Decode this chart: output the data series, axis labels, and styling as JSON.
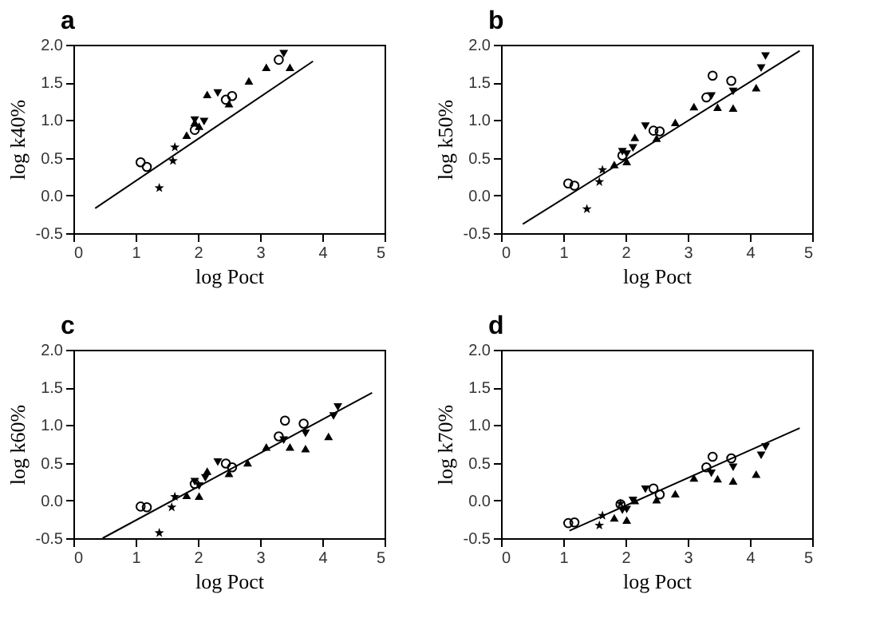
{
  "chart_data": [
    {
      "type": "scatter",
      "title": "a",
      "xlabel": "log Poct",
      "ylabel": "log k40%",
      "xlim": [
        0,
        5
      ],
      "ylim": [
        -0.5,
        2.0
      ],
      "xticks": [
        0,
        1,
        2,
        3,
        4,
        5
      ],
      "yticks": [
        {
          "value": -0.5,
          "label": "-0.5"
        },
        {
          "value": 0,
          "label": "0.0"
        },
        {
          "value": 0.5,
          "label": "0.5"
        },
        {
          "value": 1,
          "label": "1.0"
        },
        {
          "value": 1.5,
          "label": "1.5"
        },
        {
          "value": 2,
          "label": "2.0"
        }
      ],
      "grid": false,
      "series": [
        {
          "color": "#000000",
          "marker": "circle",
          "x": [
            1.08,
            1.18,
            1.95,
            2.45,
            2.55,
            3.3
          ],
          "values": [
            0.44,
            0.38,
            0.87,
            1.27,
            1.32,
            1.8
          ]
        },
        {
          "color": "#000000",
          "marker": "triangle",
          "x": [
            1.82,
            1.95,
            2.02,
            2.15,
            2.5,
            2.82,
            3.1,
            3.48
          ],
          "values": [
            0.8,
            0.97,
            0.92,
            1.34,
            1.22,
            1.52,
            1.7,
            1.7
          ]
        },
        {
          "color": "#000000",
          "marker": "triangle-down",
          "x": [
            1.95,
            2.1,
            2.32,
            3.38
          ],
          "values": [
            1.0,
            0.98,
            1.36,
            1.88
          ]
        },
        {
          "color": "#000000",
          "marker": "star",
          "x": [
            1.38,
            1.6,
            1.63
          ],
          "values": [
            0.1,
            0.46,
            0.64
          ]
        },
        {
          "type": "line",
          "color": "#000000",
          "x": [
            0.35,
            3.85
          ],
          "values": [
            -0.17,
            1.78
          ]
        }
      ]
    },
    {
      "type": "scatter",
      "title": "b",
      "xlabel": "log Poct",
      "ylabel": "log k50%",
      "xlim": [
        0,
        5
      ],
      "ylim": [
        -0.5,
        2.0
      ],
      "xticks": [
        0,
        1,
        2,
        3,
        4,
        5
      ],
      "yticks": [
        {
          "value": -0.5,
          "label": "-0.5"
        },
        {
          "value": 0,
          "label": "0.0"
        },
        {
          "value": 0.5,
          "label": "0.5"
        },
        {
          "value": 1,
          "label": "1.0"
        },
        {
          "value": 1.5,
          "label": "1.5"
        },
        {
          "value": 2,
          "label": "2.0"
        }
      ],
      "grid": false,
      "series": [
        {
          "color": "#000000",
          "marker": "circle",
          "x": [
            1.08,
            1.18,
            1.95,
            2.45,
            2.55,
            3.3,
            3.4,
            3.7
          ],
          "values": [
            0.16,
            0.13,
            0.53,
            0.86,
            0.85,
            1.3,
            1.59,
            1.52
          ]
        },
        {
          "color": "#000000",
          "marker": "triangle",
          "x": [
            1.82,
            2.02,
            2.15,
            2.5,
            2.8,
            3.1,
            3.48,
            3.73,
            4.1
          ],
          "values": [
            0.41,
            0.45,
            0.77,
            0.76,
            0.97,
            1.18,
            1.17,
            1.16,
            1.43
          ]
        },
        {
          "color": "#000000",
          "marker": "triangle-down",
          "x": [
            1.95,
            2.02,
            2.12,
            2.32,
            3.38,
            3.73,
            4.18,
            4.25
          ],
          "values": [
            0.58,
            0.55,
            0.63,
            0.92,
            1.32,
            1.38,
            1.69,
            1.85
          ]
        },
        {
          "color": "#000000",
          "marker": "star",
          "x": [
            1.38,
            1.58,
            1.63
          ],
          "values": [
            -0.18,
            0.18,
            0.34
          ]
        },
        {
          "type": "line",
          "color": "#000000",
          "x": [
            0.35,
            4.8
          ],
          "values": [
            -0.38,
            1.92
          ]
        }
      ]
    },
    {
      "type": "scatter",
      "title": "c",
      "xlabel": "log Poct",
      "ylabel": "log k60%",
      "xlim": [
        0,
        5
      ],
      "ylim": [
        -0.5,
        2.0
      ],
      "xticks": [
        0,
        1,
        2,
        3,
        4,
        5
      ],
      "yticks": [
        {
          "value": -0.5,
          "label": "-0.5"
        },
        {
          "value": 0,
          "label": "0.0"
        },
        {
          "value": 0.5,
          "label": "0.5"
        },
        {
          "value": 1,
          "label": "1.0"
        },
        {
          "value": 1.5,
          "label": "1.5"
        },
        {
          "value": 2,
          "label": "2.0"
        }
      ],
      "grid": false,
      "series": [
        {
          "color": "#000000",
          "marker": "circle",
          "x": [
            1.08,
            1.18,
            1.95,
            2.45,
            2.55,
            3.3,
            3.4,
            3.7
          ],
          "values": [
            -0.08,
            -0.09,
            0.22,
            0.49,
            0.44,
            0.85,
            1.06,
            1.02
          ]
        },
        {
          "color": "#000000",
          "marker": "triangle",
          "x": [
            1.82,
            2.02,
            2.15,
            2.5,
            2.8,
            3.1,
            3.48,
            3.73,
            4.1
          ],
          "values": [
            0.07,
            0.06,
            0.39,
            0.36,
            0.5,
            0.71,
            0.71,
            0.69,
            0.85
          ]
        },
        {
          "color": "#000000",
          "marker": "triangle-down",
          "x": [
            1.95,
            2.02,
            2.12,
            2.32,
            3.38,
            3.73,
            4.18,
            4.25
          ],
          "values": [
            0.25,
            0.19,
            0.3,
            0.51,
            0.8,
            0.89,
            1.12,
            1.24
          ]
        },
        {
          "color": "#000000",
          "marker": "star",
          "x": [
            1.38,
            1.58,
            1.63
          ],
          "values": [
            -0.43,
            -0.09,
            0.05
          ]
        },
        {
          "type": "line",
          "color": "#000000",
          "x": [
            0.47,
            4.8
          ],
          "values": [
            -0.5,
            1.43
          ]
        }
      ]
    },
    {
      "type": "scatter",
      "title": "d",
      "xlabel": "log Poct",
      "ylabel": "log k70%",
      "xlim": [
        0,
        5
      ],
      "ylim": [
        -0.5,
        2.0
      ],
      "xticks": [
        0,
        1,
        2,
        3,
        4,
        5
      ],
      "yticks": [
        {
          "value": -0.5,
          "label": "-0.5"
        },
        {
          "value": 0,
          "label": "0.0"
        },
        {
          "value": 0.5,
          "label": "0.5"
        },
        {
          "value": 1,
          "label": "1.0"
        },
        {
          "value": 1.5,
          "label": "1.5"
        },
        {
          "value": 2,
          "label": "2.0"
        }
      ],
      "grid": false,
      "series": [
        {
          "color": "#000000",
          "marker": "circle",
          "x": [
            1.08,
            1.18,
            1.92,
            2.45,
            2.55,
            3.3,
            3.4,
            3.7
          ],
          "values": [
            -0.3,
            -0.29,
            -0.05,
            0.16,
            0.08,
            0.44,
            0.58,
            0.56
          ]
        },
        {
          "color": "#000000",
          "marker": "triangle",
          "x": [
            1.82,
            2.02,
            2.15,
            2.5,
            2.8,
            3.1,
            3.48,
            3.73,
            4.1
          ],
          "values": [
            -0.23,
            -0.26,
            0.0,
            0.01,
            0.09,
            0.3,
            0.29,
            0.26,
            0.35
          ]
        },
        {
          "color": "#000000",
          "marker": "triangle-down",
          "x": [
            1.95,
            2.02,
            2.12,
            2.32,
            3.38,
            3.73,
            4.18,
            4.25
          ],
          "values": [
            -0.13,
            -0.12,
            0.0,
            0.15,
            0.36,
            0.44,
            0.6,
            0.71
          ]
        },
        {
          "color": "#000000",
          "marker": "star",
          "x": [
            1.58,
            1.63,
            1.92
          ],
          "values": [
            -0.33,
            -0.2,
            -0.04
          ]
        },
        {
          "type": "line",
          "color": "#000000",
          "x": [
            1.1,
            4.8
          ],
          "values": [
            -0.4,
            0.96
          ]
        }
      ]
    }
  ]
}
